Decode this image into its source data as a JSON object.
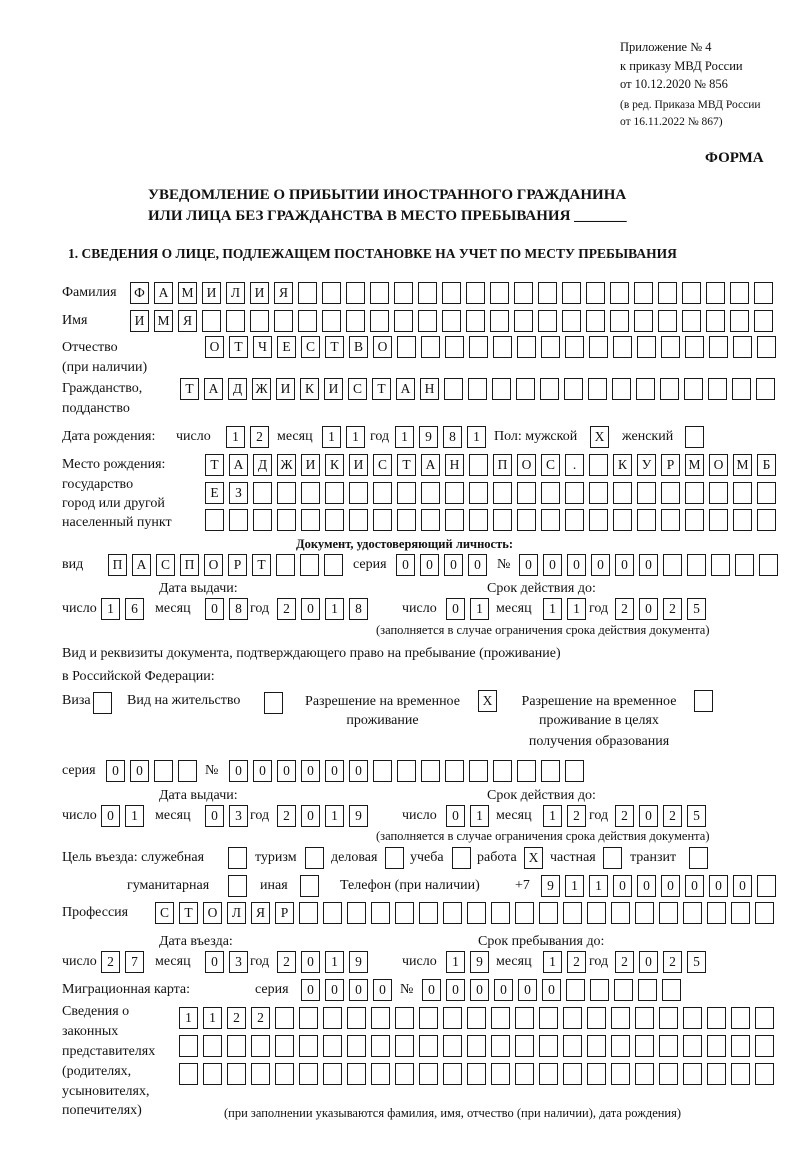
{
  "header": {
    "line1": "Приложение № 4",
    "line2": "к приказу МВД России",
    "line3": "от 10.12.2020 № 856",
    "line4": "(в ред. Приказа МВД России",
    "line5": "от 16.11.2022 № 867)",
    "form": "ФОРМА",
    "title1": "УВЕДОМЛЕНИЕ О ПРИБЫТИИ ИНОСТРАННОГО ГРАЖДАНИНА",
    "title2": "ИЛИ ЛИЦА БЕЗ ГРАЖДАНСТВА В МЕСТО ПРЕБЫВАНИЯ _______",
    "section1": "1. СВЕДЕНИЯ О ЛИЦЕ, ПОДЛЕЖАЩЕМ ПОСТАНОВКЕ НА УЧЕТ ПО МЕСТУ ПРЕБЫВАНИЯ"
  },
  "labels": {
    "surname": "Фамилия",
    "name": "Имя",
    "patronymic": "Отчество",
    "patronymic2": "(при наличии)",
    "citizenship": "Гражданство,",
    "citizenship2": "подданство",
    "birth_date": "Дата рождения:",
    "day": "число",
    "month": "месяц",
    "year": "год",
    "sex": "Пол: мужской",
    "female": "женский",
    "birthplace1": "Место рождения:",
    "birthplace2": "государство",
    "birthplace3": "город или другой",
    "birthplace4": "населенный пункт",
    "id_doc": "Документ, удостоверяющий личность:",
    "kind": "вид",
    "series": "серия",
    "number": "№",
    "issue_date": "Дата выдачи:",
    "valid_until": "Срок действия до:",
    "validity_note": "(заполняется в случае ограничения срока действия документа)",
    "stay_doc1": "Вид и реквизиты документа, подтверждающего право на пребывание (проживание)",
    "stay_doc2": "в Российской Федерации:",
    "visa": "Виза",
    "residence": "Вид на жительство",
    "temp1": "Разрешение на временное",
    "temp2": "проживание",
    "edu1": "Разрешение на временное",
    "edu2": "проживание в целях",
    "edu3": "получения образования",
    "purpose": "Цель въезда: служебная",
    "tourism": "туризм",
    "business": "деловая",
    "study": "учеба",
    "work": "работа",
    "private": "частная",
    "transit": "транзит",
    "humanitarian": "гуманитарная",
    "other": "иная",
    "phone": "Телефон (при наличии)",
    "phone_prefix": "+7",
    "profession": "Профессия",
    "entry_date": "Дата въезда:",
    "stay_until": "Срок пребывания до:",
    "migration_card": "Миграционная карта:",
    "reps1": "Сведения о",
    "reps2": "законных",
    "reps3": "представителях",
    "reps4": "(родителях,",
    "reps5": "усыновителях,",
    "reps6": "попечителях)",
    "reps_note": "(при заполнении указываются фамилия, имя, отчество (при наличии), дата рождения)"
  },
  "values": {
    "surname": "ФАМИЛИЯ",
    "name": "ИМЯ",
    "patronymic": "ОТЧЕСТВО",
    "citizenship": "ТАДЖИКИСТАН",
    "birth_day": "12",
    "birth_month": "11",
    "birth_year": "1981",
    "male": "X",
    "female": "",
    "birthplace1": "ТАДЖИКИСТАН ПОС. КУРМОМБ",
    "birthplace2": "ЕЗ",
    "birthplace3": "",
    "doc_kind": "ПАСПОРТ",
    "doc_series": "0000",
    "doc_number": "000000",
    "doc_issue_day": "16",
    "doc_issue_month": "08",
    "doc_issue_year": "2018",
    "doc_valid_day": "01",
    "doc_valid_month": "11",
    "doc_valid_year": "2025",
    "visa": "",
    "residence": "",
    "temp_residence": "X",
    "edu_residence": "",
    "stay_series": "00",
    "stay_number": "000000",
    "stay_issue_day": "01",
    "stay_issue_month": "03",
    "stay_issue_year": "2019",
    "stay_valid_day": "01",
    "stay_valid_month": "12",
    "stay_valid_year": "2025",
    "p_service": "",
    "p_tourism": "",
    "p_business": "",
    "p_study": "",
    "p_work": "X",
    "p_private": "",
    "p_transit": "",
    "p_humanitarian": "",
    "p_other": "",
    "phone": "911000000",
    "profession": "СТОЛЯР",
    "entry_day": "27",
    "entry_month": "03",
    "entry_year": "2019",
    "until_day": "19",
    "until_month": "12",
    "until_year": "2025",
    "mc_series": "0000",
    "mc_number": "000000",
    "reps1": "1122",
    "reps2": "",
    "reps3": ""
  }
}
